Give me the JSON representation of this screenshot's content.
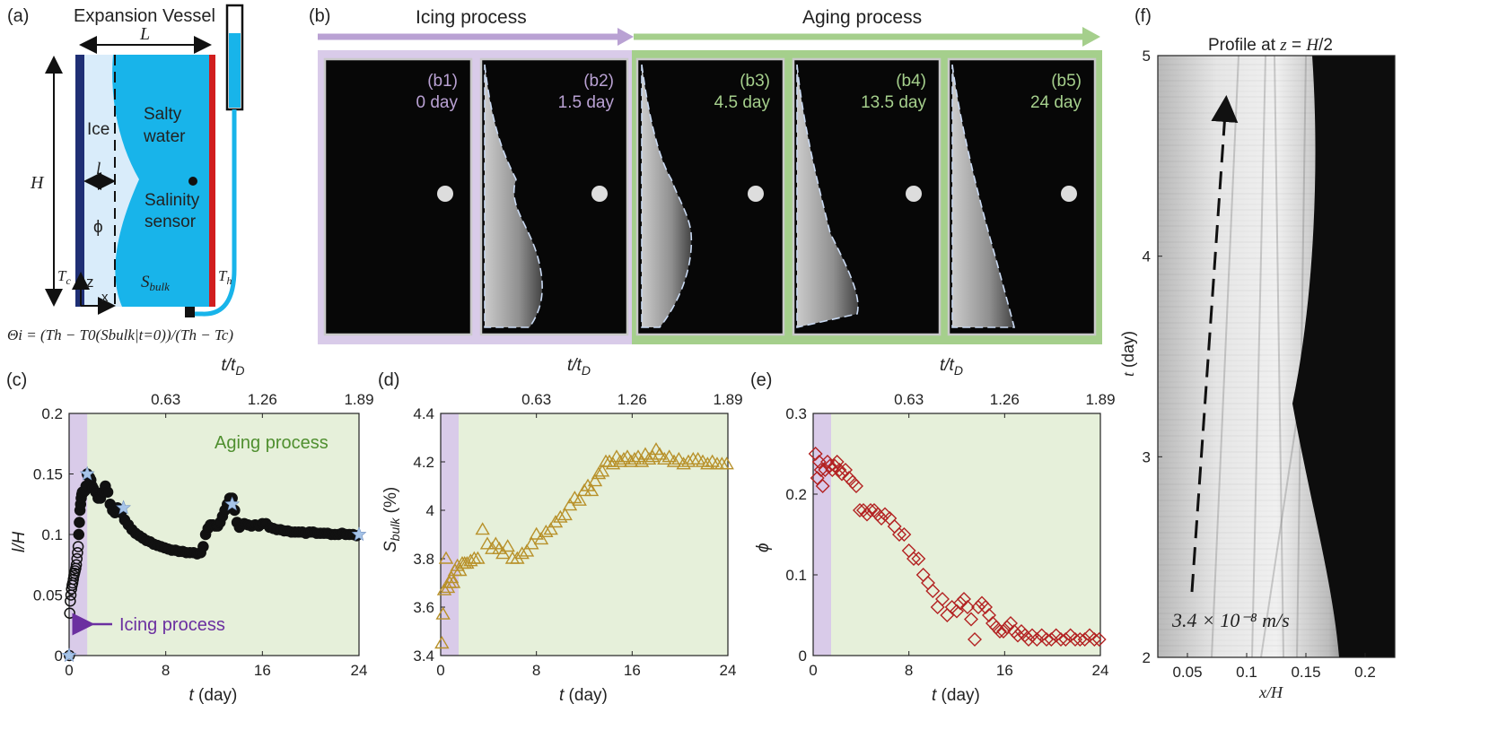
{
  "panel_a": {
    "label": "(a)",
    "title": "Expansion Vessel",
    "L": "L",
    "H": "H",
    "l": "l",
    "ice": "Ice",
    "phi": "ϕ",
    "salty1": "Salty",
    "salty2": "water",
    "sensor1": "Salinity",
    "sensor2": "sensor",
    "Tc": "T",
    "Tc_sub": "c",
    "Th": "T",
    "Th_sub": "h",
    "Sbulk": "S",
    "Sbulk_sub": "bulk",
    "z": "z",
    "x": "x",
    "formula": "Θi = (Th − T0(Sbulk|t=0))/(Th − Tc)"
  },
  "panel_b": {
    "label": "(b)",
    "icing": "Icing process",
    "aging": "Aging process",
    "frames": [
      {
        "id": "(b1)",
        "time": "0 day",
        "phase": "icing"
      },
      {
        "id": "(b2)",
        "time": "1.5 day",
        "phase": "icing"
      },
      {
        "id": "(b3)",
        "time": "4.5 day",
        "phase": "aging"
      },
      {
        "id": "(b4)",
        "time": "13.5 day",
        "phase": "aging"
      },
      {
        "id": "(b5)",
        "time": "24 day",
        "phase": "aging"
      }
    ]
  },
  "colors": {
    "icing_purple": "#b9a1d3",
    "icing_fill": "#d9cbe9",
    "aging_green": "#a5cf8c",
    "aging_fill": "#e6f0da",
    "water_blue": "#18b4ea",
    "ice_white": "#d9ecfa",
    "series_black": "#111111",
    "series_gold": "#b8912a",
    "series_red": "#b32222",
    "star": "#a6c4e8"
  },
  "panel_f": {
    "label": "(f)",
    "title": "Profile at z = H/2",
    "velocity": "3.4 × 10⁻⁸ m/s",
    "xlabel": "x/H",
    "ylabel": "t (day)",
    "xticks": [
      "0.05",
      "0.1",
      "0.15",
      "0.2"
    ],
    "yticks": [
      "2",
      "3",
      "4",
      "5"
    ]
  },
  "chart_data": [
    {
      "id": "c",
      "label": "(c)",
      "type": "scatter",
      "xlabel": "t (day)",
      "ylabel": "l/H",
      "top_label": "t/tD",
      "xlim": [
        0,
        24
      ],
      "ylim": [
        0,
        0.2
      ],
      "xticks": [
        "0",
        "8",
        "16",
        "24"
      ],
      "yticks": [
        "0",
        "0.05",
        "0.1",
        "0.15",
        "0.2"
      ],
      "top_ticks": [
        "0.63",
        "1.26",
        "1.89"
      ],
      "annotation_aging": "Aging process",
      "annotation_icing": "Icing process",
      "icing_end": 1.5,
      "x": [
        0.02,
        0.05,
        0.1,
        0.15,
        0.2,
        0.25,
        0.3,
        0.35,
        0.4,
        0.45,
        0.5,
        0.55,
        0.6,
        0.65,
        0.7,
        0.75,
        0.8,
        0.85,
        0.9,
        0.95,
        1.0,
        1.05,
        1.1,
        1.2,
        1.3,
        1.4,
        1.5,
        1.6,
        1.7,
        1.8,
        1.9,
        2.0,
        2.2,
        2.4,
        2.6,
        2.8,
        3.0,
        3.2,
        3.4,
        3.6,
        3.8,
        4.0,
        4.3,
        4.6,
        4.9,
        5.2,
        5.5,
        5.8,
        6.1,
        6.4,
        6.7,
        7.0,
        7.3,
        7.6,
        7.9,
        8.2,
        8.5,
        8.8,
        9.1,
        9.4,
        9.7,
        10.0,
        10.3,
        10.6,
        10.9,
        11.1,
        11.3,
        11.5,
        11.7,
        11.9,
        12.1,
        12.3,
        12.5,
        12.7,
        12.9,
        13.1,
        13.3,
        13.5,
        13.7,
        13.9,
        14.1,
        14.3,
        14.5,
        14.8,
        15.1,
        15.4,
        15.7,
        16.0,
        16.3,
        16.6,
        16.9,
        17.2,
        17.5,
        17.8,
        18.1,
        18.4,
        18.7,
        19.0,
        19.3,
        19.6,
        19.9,
        20.2,
        20.5,
        20.8,
        21.1,
        21.4,
        21.7,
        22.0,
        22.3,
        22.6,
        22.9,
        23.2,
        23.5,
        23.8
      ],
      "y": [
        0.0,
        0.035,
        0.045,
        0.05,
        0.055,
        0.058,
        0.06,
        0.063,
        0.066,
        0.068,
        0.07,
        0.072,
        0.075,
        0.08,
        0.085,
        0.09,
        0.1,
        0.11,
        0.12,
        0.125,
        0.13,
        0.133,
        0.135,
        0.135,
        0.136,
        0.14,
        0.15,
        0.148,
        0.147,
        0.145,
        0.14,
        0.138,
        0.135,
        0.13,
        0.13,
        0.135,
        0.14,
        0.135,
        0.125,
        0.12,
        0.118,
        0.122,
        0.118,
        0.112,
        0.108,
        0.104,
        0.101,
        0.099,
        0.097,
        0.095,
        0.094,
        0.092,
        0.091,
        0.09,
        0.089,
        0.088,
        0.087,
        0.087,
        0.086,
        0.086,
        0.085,
        0.085,
        0.085,
        0.084,
        0.085,
        0.09,
        0.1,
        0.105,
        0.108,
        0.108,
        0.107,
        0.107,
        0.11,
        0.115,
        0.12,
        0.125,
        0.13,
        0.13,
        0.12,
        0.11,
        0.106,
        0.108,
        0.109,
        0.108,
        0.107,
        0.108,
        0.107,
        0.109,
        0.109,
        0.106,
        0.105,
        0.104,
        0.104,
        0.103,
        0.103,
        0.102,
        0.102,
        0.102,
        0.102,
        0.101,
        0.102,
        0.102,
        0.101,
        0.101,
        0.101,
        0.101,
        0.1,
        0.1,
        0.1,
        0.101,
        0.1,
        0.1,
        0.1,
        0.099
      ],
      "stars_x": [
        0,
        1.5,
        4.5,
        13.5,
        24
      ],
      "stars_y": [
        0,
        0.15,
        0.122,
        0.125,
        0.1
      ]
    },
    {
      "id": "d",
      "label": "(d)",
      "type": "scatter",
      "xlabel": "t (day)",
      "ylabel": "Sbulk (%)",
      "top_label": "t/tD",
      "xlim": [
        0,
        24
      ],
      "ylim": [
        3.4,
        4.4
      ],
      "xticks": [
        "0",
        "8",
        "16",
        "24"
      ],
      "yticks": [
        "3.4",
        "3.6",
        "3.8",
        "4",
        "4.2",
        "4.4"
      ],
      "top_ticks": [
        "0.63",
        "1.26",
        "1.89"
      ],
      "icing_end": 1.5,
      "x": [
        0.1,
        0.2,
        0.3,
        0.45,
        0.6,
        0.75,
        0.9,
        1.05,
        1.2,
        1.4,
        1.6,
        1.8,
        2.0,
        2.2,
        2.5,
        2.8,
        3.1,
        3.5,
        3.9,
        4.3,
        4.6,
        4.9,
        5.2,
        5.6,
        6.0,
        6.4,
        6.8,
        7.2,
        7.6,
        8.0,
        8.4,
        8.8,
        9.2,
        9.6,
        10.0,
        10.4,
        10.8,
        11.2,
        11.6,
        12.0,
        12.3,
        12.6,
        12.9,
        13.2,
        13.5,
        13.8,
        14.1,
        14.4,
        14.7,
        15.0,
        15.3,
        15.6,
        15.9,
        16.2,
        16.5,
        16.8,
        17.1,
        17.4,
        17.7,
        18.0,
        18.3,
        18.7,
        19.1,
        19.5,
        19.9,
        20.3,
        20.7,
        21.1,
        21.5,
        21.9,
        22.3,
        22.7,
        23.1,
        23.5,
        23.9
      ],
      "y": [
        3.45,
        3.57,
        3.67,
        3.8,
        3.68,
        3.7,
        3.72,
        3.7,
        3.75,
        3.77,
        3.75,
        3.78,
        3.78,
        3.78,
        3.79,
        3.8,
        3.8,
        3.92,
        3.86,
        3.84,
        3.86,
        3.84,
        3.82,
        3.85,
        3.8,
        3.8,
        3.82,
        3.83,
        3.86,
        3.9,
        3.88,
        3.91,
        3.92,
        3.95,
        3.97,
        3.98,
        4.02,
        4.05,
        4.04,
        4.08,
        4.1,
        4.08,
        4.12,
        4.15,
        4.16,
        4.2,
        4.2,
        4.19,
        4.22,
        4.2,
        4.21,
        4.22,
        4.2,
        4.21,
        4.22,
        4.2,
        4.23,
        4.21,
        4.22,
        4.25,
        4.23,
        4.21,
        4.22,
        4.2,
        4.21,
        4.19,
        4.2,
        4.21,
        4.21,
        4.2,
        4.19,
        4.2,
        4.19,
        4.19,
        4.19
      ]
    },
    {
      "id": "e",
      "label": "(e)",
      "type": "scatter",
      "xlabel": "t (day)",
      "ylabel": "ϕ",
      "top_label": "t/tD",
      "xlim": [
        0,
        24
      ],
      "ylim": [
        0,
        0.3
      ],
      "xticks": [
        "0",
        "8",
        "16",
        "24"
      ],
      "yticks": [
        "0",
        "0.1",
        "0.2",
        "0.3"
      ],
      "top_ticks": [
        "0.63",
        "1.26",
        "1.89"
      ],
      "icing_end": 1.5,
      "x": [
        0.2,
        0.35,
        0.5,
        0.65,
        0.8,
        1.0,
        1.2,
        1.4,
        1.6,
        1.8,
        2.0,
        2.2,
        2.4,
        2.7,
        3.0,
        3.3,
        3.6,
        3.9,
        4.2,
        4.5,
        4.8,
        5.1,
        5.4,
        5.7,
        6.0,
        6.4,
        6.8,
        7.2,
        7.6,
        8.0,
        8.4,
        8.8,
        9.2,
        9.6,
        10.0,
        10.4,
        10.8,
        11.2,
        11.6,
        12.0,
        12.3,
        12.6,
        12.9,
        13.2,
        13.5,
        13.8,
        14.1,
        14.4,
        14.7,
        15.0,
        15.3,
        15.6,
        15.9,
        16.2,
        16.5,
        16.8,
        17.1,
        17.4,
        17.7,
        18.0,
        18.3,
        18.7,
        19.1,
        19.5,
        19.9,
        20.3,
        20.7,
        21.1,
        21.5,
        21.9,
        22.3,
        22.7,
        23.1,
        23.5,
        23.9
      ],
      "y": [
        0.25,
        0.22,
        0.24,
        0.23,
        0.21,
        0.23,
        0.24,
        0.235,
        0.23,
        0.235,
        0.24,
        0.23,
        0.225,
        0.23,
        0.22,
        0.215,
        0.21,
        0.18,
        0.18,
        0.175,
        0.18,
        0.18,
        0.175,
        0.17,
        0.175,
        0.17,
        0.16,
        0.15,
        0.15,
        0.13,
        0.12,
        0.12,
        0.1,
        0.09,
        0.08,
        0.06,
        0.07,
        0.05,
        0.06,
        0.055,
        0.065,
        0.07,
        0.06,
        0.045,
        0.02,
        0.06,
        0.065,
        0.06,
        0.05,
        0.04,
        0.035,
        0.03,
        0.03,
        0.035,
        0.04,
        0.03,
        0.025,
        0.03,
        0.025,
        0.02,
        0.025,
        0.02,
        0.025,
        0.02,
        0.02,
        0.025,
        0.02,
        0.02,
        0.025,
        0.02,
        0.02,
        0.02,
        0.025,
        0.02,
        0.02
      ]
    }
  ]
}
